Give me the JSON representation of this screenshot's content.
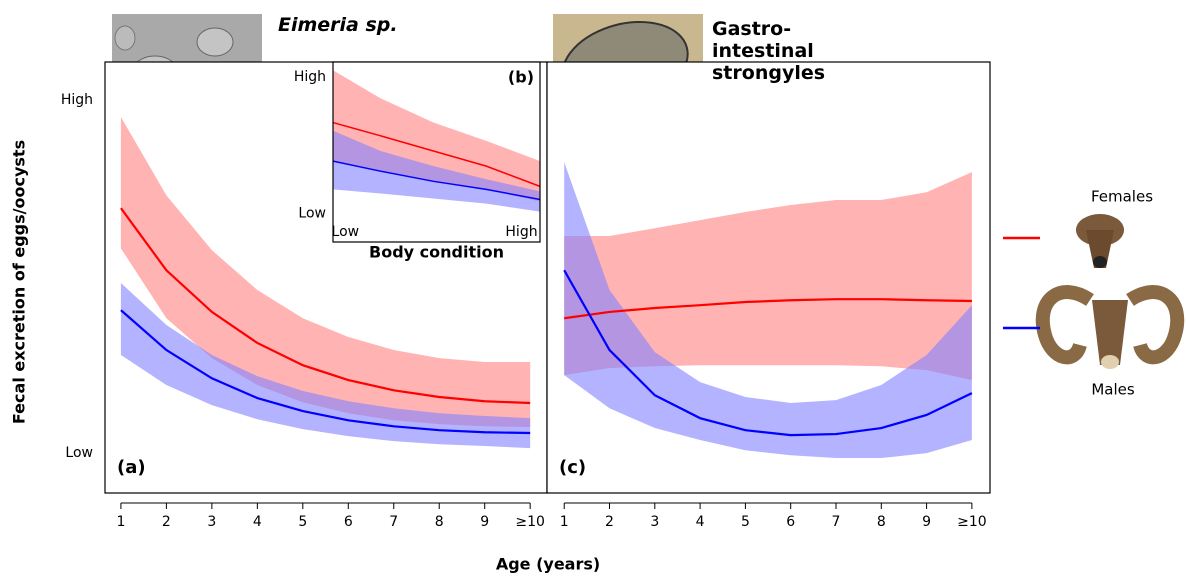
{
  "chart_data": [
    {
      "type": "line",
      "label": "(a)",
      "title": "Eimeria sp.",
      "ylabel": "Fecal excretion of eggs/oocysts",
      "xlabel": "Age (years)",
      "x": [
        1,
        2,
        3,
        4,
        5,
        6,
        7,
        8,
        9,
        10
      ],
      "xlim": [
        0.65,
        10.37
      ],
      "xticks": [
        1,
        2,
        3,
        4,
        5,
        6,
        7,
        8,
        9,
        {
          "value": 10,
          "label": "≥10"
        }
      ],
      "ylim": [
        -11.3,
        110.8
      ],
      "yticks": [
        {
          "value": 0,
          "label": "Low"
        },
        {
          "value": 100,
          "label": "High"
        }
      ],
      "series": [
        {
          "name": "Females",
          "color": "#ff0000",
          "band_color": "#ff8080",
          "values": [
            69.4,
            51.8,
            40,
            31.2,
            24.9,
            20.7,
            17.8,
            15.9,
            14.7,
            14.2
          ],
          "upper": [
            95.2,
            73,
            57.5,
            46.2,
            38.2,
            32.9,
            29.2,
            26.9,
            25.8,
            25.8
          ],
          "lower": [
            58,
            38.2,
            26.9,
            19.3,
            14.4,
            11.3,
            9.3,
            8.2,
            7.6,
            7.4
          ]
        },
        {
          "name": "Males",
          "color": "#0000ff",
          "band_color": "#8080ff",
          "values": [
            40.5,
            29.2,
            21.2,
            15.6,
            11.9,
            9.3,
            7.6,
            6.5,
            5.9,
            5.7
          ],
          "upper": [
            48.2,
            36.3,
            27.8,
            21.8,
            17.6,
            14.7,
            12.7,
            11.3,
            10.5,
            9.9
          ],
          "lower": [
            27.8,
            19.3,
            13.6,
            9.6,
            6.8,
            4.8,
            3.4,
            2.5,
            2,
            1.4
          ]
        }
      ]
    },
    {
      "type": "line",
      "label": "(b)",
      "xlabel": "Body condition",
      "x": [
        -7,
        20,
        50,
        80,
        110.5
      ],
      "xlim": [
        -7,
        110.5
      ],
      "xticks": [
        {
          "value": 0,
          "label": "Low"
        },
        {
          "value": 100,
          "label": "High"
        }
      ],
      "ylim": [
        -20.7,
        111
      ],
      "yticks": [
        {
          "value": 0,
          "label": "Low"
        },
        {
          "value": 100,
          "label": "High"
        }
      ],
      "series": [
        {
          "name": "Females",
          "color": "#ff0000",
          "band_color": "#ff8080",
          "values": [
            66.7,
            57,
            45.9,
            34.8,
            20
          ],
          "upper": [
            105,
            84.4,
            66.7,
            53.3,
            38.5
          ],
          "lower": [
            38.5,
            31.1,
            23.7,
            17.8,
            8.9
          ]
        },
        {
          "name": "Males",
          "color": "#0000ff",
          "band_color": "#8080ff",
          "values": [
            38.5,
            31.1,
            23.7,
            17.8,
            10.4
          ],
          "upper": [
            60.7,
            45.9,
            34.8,
            25.2,
            16.3
          ],
          "lower": [
            17.8,
            14.8,
            11.1,
            7.4,
            1.5
          ]
        }
      ]
    },
    {
      "type": "line",
      "label": "(c)",
      "title": "Gastro-intestinal strongyles",
      "x": [
        1,
        2,
        3,
        4,
        5,
        6,
        7,
        8,
        9,
        10
      ],
      "xlim": [
        0.62,
        10.4
      ],
      "xticks": [
        1,
        2,
        3,
        4,
        5,
        6,
        7,
        8,
        9,
        {
          "value": 10,
          "label": "≥10"
        }
      ],
      "ylim": [
        -11.3,
        110.8
      ],
      "series": [
        {
          "name": "Females",
          "color": "#ff0000",
          "band_color": "#ff8080",
          "values": [
            38.2,
            40,
            41.1,
            41.9,
            42.8,
            43.3,
            43.6,
            43.6,
            43.3,
            43.1
          ],
          "upper": [
            61.5,
            61.5,
            63.7,
            66,
            68.3,
            70.3,
            71.7,
            71.7,
            73.9,
            79.6
          ],
          "lower": [
            22.1,
            24.1,
            24.6,
            24.9,
            24.9,
            24.9,
            24.9,
            24.6,
            23.5,
            20.7
          ]
        },
        {
          "name": "Males",
          "color": "#0000ff",
          "band_color": "#8080ff",
          "values": [
            51.8,
            29.2,
            16.4,
            9.9,
            6.5,
            5.1,
            5.4,
            7.1,
            10.8,
            17
          ],
          "upper": [
            82.4,
            46.2,
            28.6,
            20.1,
            15.9,
            14.2,
            15,
            19.3,
            27.8,
            41.9
          ],
          "lower": [
            22.1,
            12.7,
            7.1,
            3.7,
            0.8,
            -0.6,
            -1.4,
            -1.4,
            0,
            3.7
          ]
        }
      ]
    }
  ]
}
